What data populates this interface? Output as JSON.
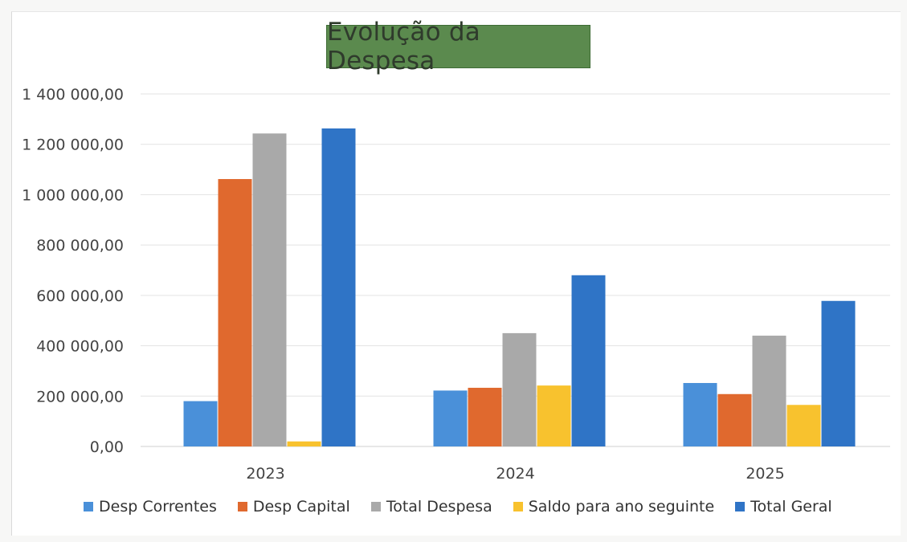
{
  "chart_data": {
    "type": "bar",
    "title": "Evolução da Despesa",
    "categories": [
      "2023",
      "2024",
      "2025"
    ],
    "series": [
      {
        "name": "Desp Correntes",
        "color": "#4a90d9",
        "values": [
          180000,
          222000,
          252000
        ]
      },
      {
        "name": "Desp Capital",
        "color": "#e0692e",
        "values": [
          1062000,
          233000,
          208000
        ]
      },
      {
        "name": "Total Despesa",
        "color": "#a9a9a9",
        "values": [
          1243000,
          450000,
          440000
        ]
      },
      {
        "name": "Saldo para ano seguinte",
        "color": "#f8c22e",
        "values": [
          20000,
          242000,
          165000
        ]
      },
      {
        "name": "Total Geral",
        "color": "#2f74c6",
        "values": [
          1263000,
          680000,
          578000
        ]
      }
    ],
    "yticks": [
      "0,00",
      "200 000,00",
      "400 000,00",
      "600 000,00",
      "800 000,00",
      "1 000 000,00",
      "1 200 000,00",
      "1 400 000,00"
    ],
    "ylim": [
      0,
      1400000
    ],
    "xlabel": "",
    "ylabel": "",
    "grid": true,
    "legend": "bottom"
  }
}
